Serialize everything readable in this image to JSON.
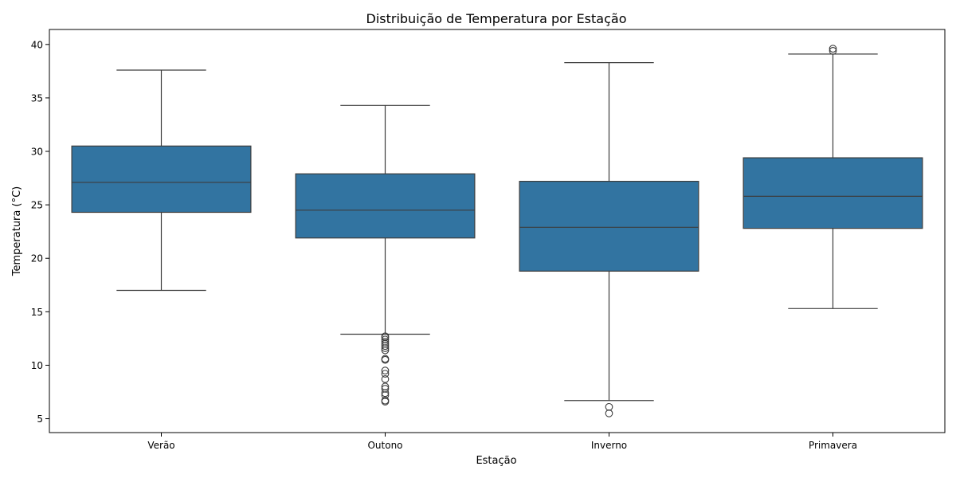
{
  "chart_data": {
    "type": "box",
    "title": "Distribuição de Temperatura por Estação",
    "xlabel": "Estação",
    "ylabel": "Temperatura (°C)",
    "ylim": [
      3.7,
      41.4
    ],
    "yticks": [
      5,
      10,
      15,
      20,
      25,
      30,
      35,
      40
    ],
    "grid": false,
    "legend": "none",
    "box_color": "#3274a1",
    "line_color": "#3d3d3d",
    "categories": [
      "Verão",
      "Outono",
      "Inverno",
      "Primavera"
    ],
    "boxes": [
      {
        "category": "Verão",
        "whisker_low": 17.0,
        "q1": 24.3,
        "median": 27.1,
        "q3": 30.5,
        "whisker_high": 37.6,
        "outliers": []
      },
      {
        "category": "Outono",
        "whisker_low": 12.9,
        "q1": 21.9,
        "median": 24.5,
        "q3": 27.9,
        "whisker_high": 34.3,
        "outliers": [
          12.7,
          12.6,
          12.4,
          12.2,
          12.0,
          11.8,
          11.6,
          11.4,
          10.6,
          10.5,
          9.5,
          9.2,
          8.7,
          8.0,
          7.8,
          7.4,
          7.2,
          6.7,
          6.6
        ]
      },
      {
        "category": "Inverno",
        "whisker_low": 6.7,
        "q1": 18.8,
        "median": 22.9,
        "q3": 27.2,
        "whisker_high": 38.3,
        "outliers": [
          6.1,
          5.5
        ]
      },
      {
        "category": "Primavera",
        "whisker_low": 15.3,
        "q1": 22.8,
        "median": 25.8,
        "q3": 29.4,
        "whisker_high": 39.1,
        "outliers": [
          39.6,
          39.4
        ]
      }
    ]
  }
}
